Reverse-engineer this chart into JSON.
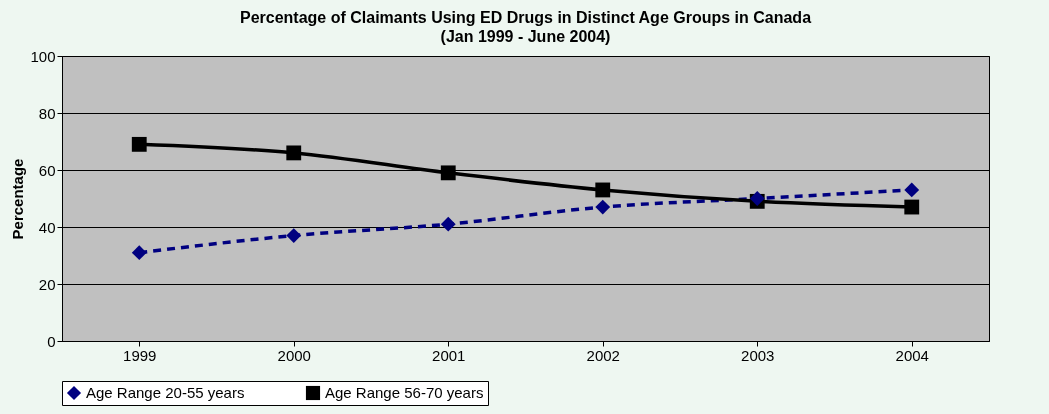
{
  "chart_data": {
    "type": "line",
    "title": "Percentage of Claimants Using ED Drugs in Distinct Age Groups in Canada",
    "subtitle": "(Jan 1999 - June 2004)",
    "ylabel": "Percentage",
    "categories": [
      "1999",
      "2000",
      "2001",
      "2002",
      "2003",
      "2004"
    ],
    "series": [
      {
        "name": "Age Range 20-55 years",
        "color": "#000080",
        "values": [
          31,
          37,
          41,
          47,
          50,
          53
        ],
        "marker": "diamond",
        "line_style": "dashed"
      },
      {
        "name": "Age Range 56-70 years",
        "color": "#000000",
        "values": [
          69,
          66,
          59,
          53,
          49,
          47
        ],
        "marker": "square",
        "line_style": "solid"
      }
    ],
    "ylim": [
      0,
      100
    ],
    "yticks": [
      0,
      20,
      40,
      60,
      80,
      100
    ],
    "grid": "y",
    "legend": "bottom"
  }
}
